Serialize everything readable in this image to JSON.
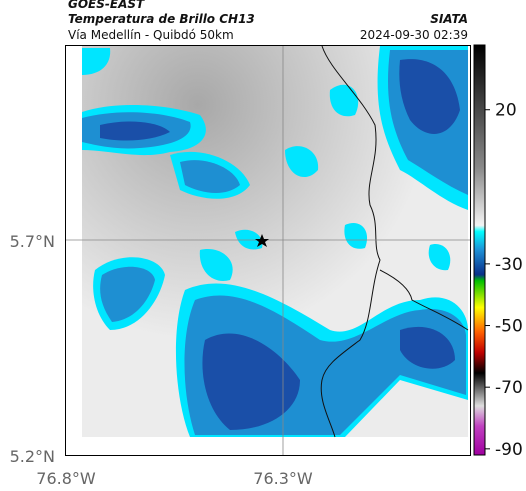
{
  "header": {
    "source": "GOES-EAST",
    "title": "Temperatura de Brillo CH13",
    "subtitle": "Vía Medellín - Quibdó 50km",
    "brand": "SIATA",
    "timestamp": "2024-09-30 02:39"
  },
  "axes": {
    "lat_labels": [
      "5.7°N",
      "5.2°N"
    ],
    "lon_labels": [
      "76.8°W",
      "76.3°W"
    ]
  },
  "colorbar": {
    "limits": [
      -92,
      41
    ],
    "ticks": [
      20,
      -30,
      -50,
      -70,
      -90
    ]
  }
}
